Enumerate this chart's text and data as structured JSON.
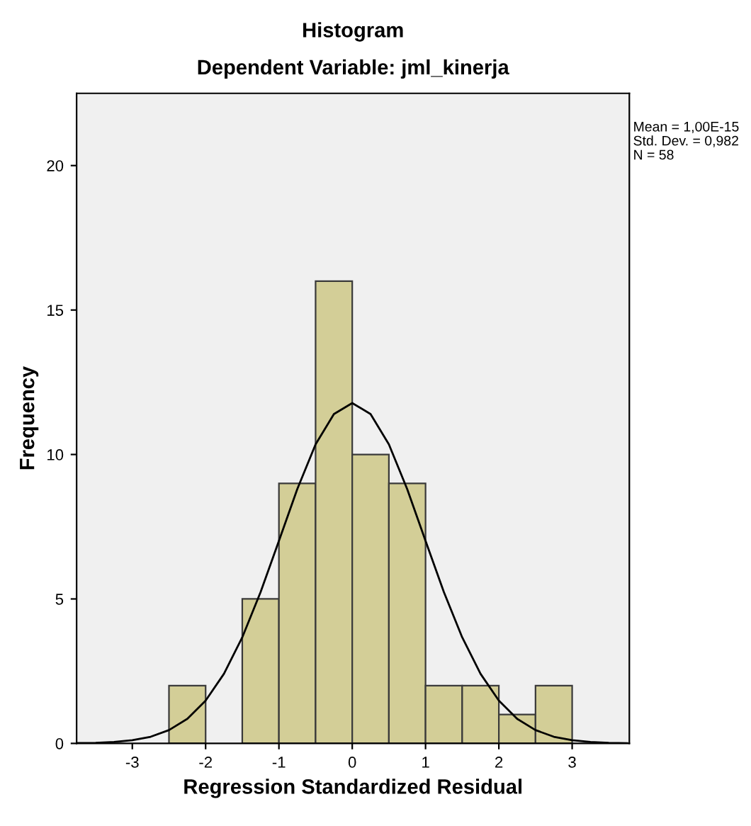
{
  "chart_data": {
    "type": "histogram",
    "title": "Histogram",
    "subtitle": "Dependent Variable: jml_kinerja",
    "xlabel": "Regression Standardized Residual",
    "ylabel": "Frequency",
    "bins": [
      -2.5,
      -2.0,
      -1.5,
      -1.0,
      -0.5,
      0.0,
      0.5,
      1.0,
      1.5,
      2.0,
      2.5,
      3.0
    ],
    "values": [
      2,
      0,
      5,
      9,
      16,
      10,
      9,
      2,
      2,
      1,
      2
    ],
    "color": "#d3ce97",
    "series": [
      {
        "type": "line",
        "color": "#000000",
        "x": [
          -3.75,
          -3.5,
          -3.25,
          -3.0,
          -2.75,
          -2.5,
          -2.25,
          -2.0,
          -1.75,
          -1.5,
          -1.25,
          -1.0,
          -0.75,
          -0.5,
          -0.25,
          0.0,
          0.25,
          0.5,
          0.75,
          1.0,
          1.25,
          1.5,
          1.75,
          2.0,
          2.25,
          2.5,
          2.75,
          3.0,
          3.25,
          3.5,
          3.75
        ],
        "values": [
          0.01,
          0.02,
          0.05,
          0.11,
          0.23,
          0.46,
          0.85,
          1.48,
          2.41,
          3.67,
          5.24,
          7.01,
          8.8,
          10.35,
          11.4,
          11.78,
          11.4,
          10.35,
          8.8,
          7.01,
          5.24,
          3.67,
          2.41,
          1.48,
          0.85,
          0.46,
          0.23,
          0.11,
          0.05,
          0.02,
          0.01
        ]
      }
    ],
    "xlim": [
      -3.76,
      3.78
    ],
    "xticks": [
      -3,
      -2,
      -1,
      0,
      1,
      2,
      3
    ],
    "ylim": [
      0,
      22.5
    ],
    "yticks": [
      0,
      5,
      10,
      15,
      20
    ],
    "grid": false,
    "legend": false,
    "annotations": [
      "Mean = 1,00E-15",
      "Std. Dev. = 0,982",
      "N = 58"
    ]
  }
}
